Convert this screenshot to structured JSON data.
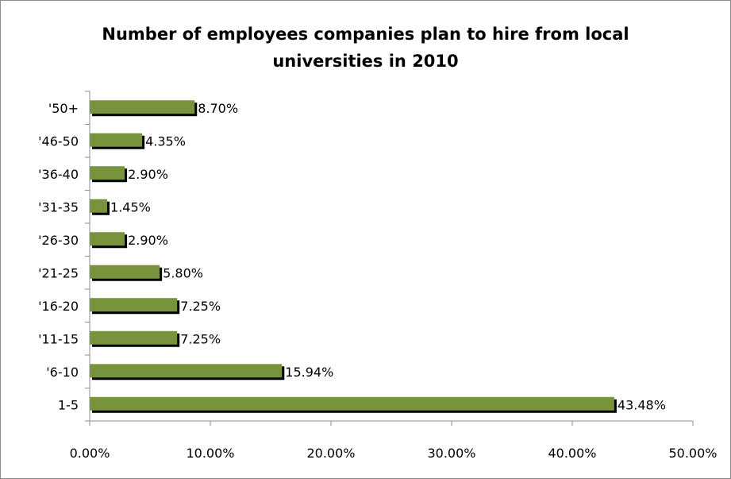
{
  "chart_data": {
    "type": "bar",
    "orientation": "horizontal",
    "title_lines": [
      "Number of employees companies plan to hire from local",
      "universities in 2010"
    ],
    "categories": [
      "1-5",
      "'6-10",
      "'11-15",
      "'16-20",
      "'21-25",
      "'26-30",
      "'31-35",
      "'36-40",
      "'46-50",
      "'50+"
    ],
    "values": [
      43.48,
      15.94,
      7.25,
      7.25,
      5.8,
      2.9,
      1.45,
      2.9,
      4.35,
      8.7
    ],
    "data_labels": [
      "43.48%",
      "15.94%",
      "7.25%",
      "7.25%",
      "5.80%",
      "2.90%",
      "1.45%",
      "2.90%",
      "4.35%",
      "8.70%"
    ],
    "xlim": [
      0,
      50
    ],
    "x_ticks": [
      0,
      10,
      20,
      30,
      40,
      50
    ],
    "x_tick_labels": [
      "0.00%",
      "10.00%",
      "20.00%",
      "30.00%",
      "40.00%",
      "50.00%"
    ],
    "grid": false,
    "legend": "none",
    "colors": {
      "bar": "#77933c",
      "shadow": "#000000",
      "axis": "#8c8c8c"
    }
  }
}
